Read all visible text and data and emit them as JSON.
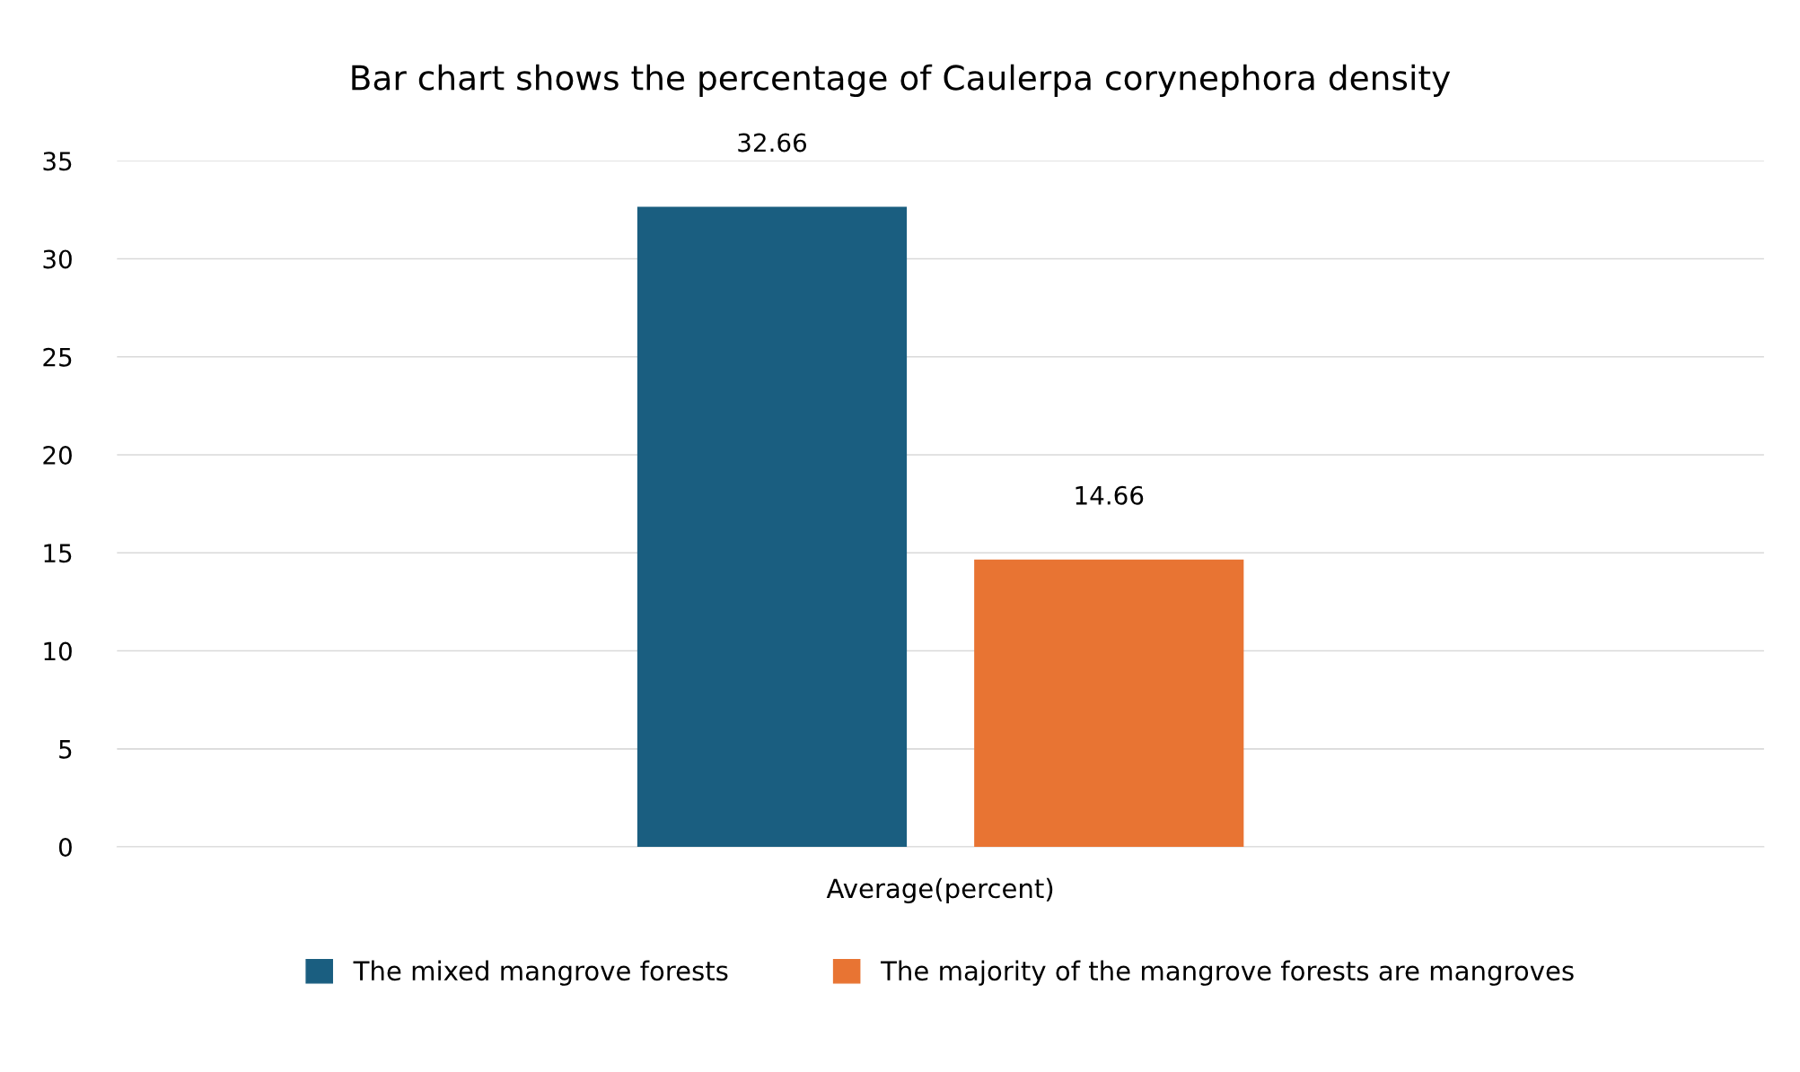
{
  "chart_data": {
    "type": "bar",
    "title": "Bar chart shows the percentage of Caulerpa corynephora density",
    "categories": [
      "Average(percent)"
    ],
    "series": [
      {
        "name": "The mixed mangrove forests",
        "color": "#1a5e80",
        "values": [
          32.66
        ]
      },
      {
        "name": "The majority of the mangrove forests are mangroves",
        "color": "#e87433",
        "values": [
          14.66
        ]
      }
    ],
    "ylim": [
      0,
      35
    ],
    "yticks": [
      0,
      5,
      10,
      15,
      20,
      25,
      30,
      35
    ],
    "grid": "y",
    "legend": "bottom",
    "data_labels": true
  }
}
